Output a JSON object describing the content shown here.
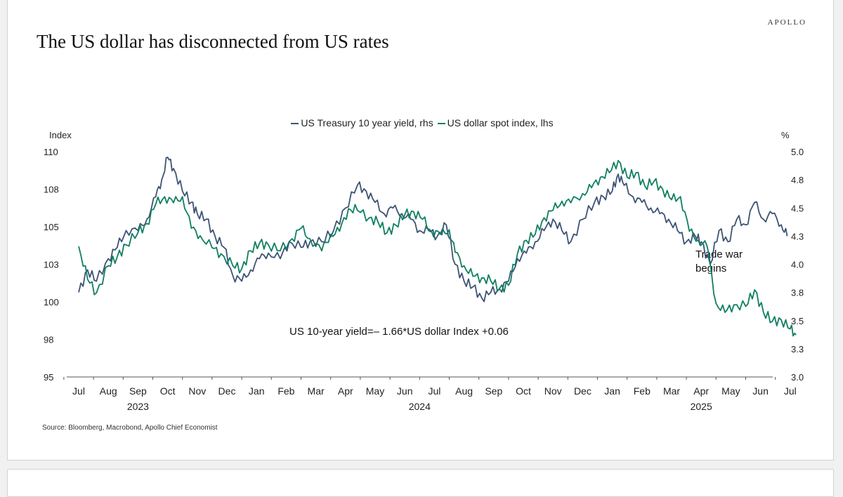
{
  "brand": "APOLLO",
  "title": "The US dollar has disconnected from US rates",
  "source": "Source: Bloomberg, Macrobond, Apollo Chief Economist",
  "chart_data": {
    "type": "line",
    "legend": [
      {
        "name": "US Treasury 10 year yield, rhs",
        "color": "#3d5375"
      },
      {
        "name": "US dollar spot index, lhs",
        "color": "#0e7f60"
      }
    ],
    "left_axis": {
      "label": "Index",
      "min": 95,
      "max": 110,
      "ticks": [
        "95",
        "98",
        "100",
        "103",
        "105",
        "108",
        "110"
      ]
    },
    "right_axis": {
      "label": "%",
      "min": 3.0,
      "max": 5.0,
      "ticks": [
        "3.0",
        "3.3",
        "3.5",
        "3.8",
        "4.0",
        "4.3",
        "4.5",
        "4.8",
        "5.0"
      ]
    },
    "x_months": [
      "Jul",
      "Aug",
      "Sep",
      "Oct",
      "Nov",
      "Dec",
      "Jan",
      "Feb",
      "Mar",
      "Apr",
      "May",
      "Jun",
      "Jul",
      "Aug",
      "Sep",
      "Oct",
      "Nov",
      "Dec",
      "Jan",
      "Feb",
      "Mar",
      "Apr",
      "May",
      "Jun",
      "Jul"
    ],
    "x_years": [
      {
        "label": "2023",
        "month_index": 2
      },
      {
        "label": "2024",
        "month_index": 11.5
      },
      {
        "label": "2025",
        "month_index": 21
      }
    ],
    "annotations": {
      "equation": "US 10-year yield=– 1.66*US dollar Index +0.06",
      "event_line1": "Trade war",
      "event_line2": "begins"
    },
    "series": [
      {
        "name": "US Treasury 10 year yield, rhs",
        "axis": "right",
        "color": "#3d5375",
        "points": [
          [
            0,
            3.75
          ],
          [
            0.3,
            3.95
          ],
          [
            0.6,
            3.85
          ],
          [
            1,
            4.05
          ],
          [
            1.3,
            4.15
          ],
          [
            1.6,
            4.3
          ],
          [
            2,
            4.3
          ],
          [
            2.3,
            4.4
          ],
          [
            2.6,
            4.6
          ],
          [
            2.8,
            4.75
          ],
          [
            3.0,
            4.95
          ],
          [
            3.2,
            4.85
          ],
          [
            3.5,
            4.65
          ],
          [
            3.8,
            4.55
          ],
          [
            4.0,
            4.45
          ],
          [
            4.3,
            4.4
          ],
          [
            4.6,
            4.25
          ],
          [
            4.9,
            4.15
          ],
          [
            5.2,
            3.9
          ],
          [
            5.5,
            3.85
          ],
          [
            5.8,
            3.95
          ],
          [
            6.1,
            4.05
          ],
          [
            6.4,
            4.1
          ],
          [
            6.8,
            4.05
          ],
          [
            7.1,
            4.2
          ],
          [
            7.5,
            4.15
          ],
          [
            7.8,
            4.2
          ],
          [
            8.2,
            4.2
          ],
          [
            8.6,
            4.3
          ],
          [
            9.0,
            4.5
          ],
          [
            9.4,
            4.7
          ],
          [
            9.7,
            4.65
          ],
          [
            10.0,
            4.55
          ],
          [
            10.3,
            4.45
          ],
          [
            10.6,
            4.5
          ],
          [
            10.9,
            4.45
          ],
          [
            11.2,
            4.4
          ],
          [
            11.5,
            4.3
          ],
          [
            11.8,
            4.3
          ],
          [
            12.1,
            4.25
          ],
          [
            12.4,
            4.35
          ],
          [
            12.7,
            4.0
          ],
          [
            13.0,
            3.85
          ],
          [
            13.3,
            3.8
          ],
          [
            13.6,
            3.7
          ],
          [
            13.9,
            3.75
          ],
          [
            14.2,
            3.78
          ],
          [
            14.5,
            3.85
          ],
          [
            14.8,
            4.05
          ],
          [
            15.1,
            4.1
          ],
          [
            15.4,
            4.2
          ],
          [
            15.7,
            4.3
          ],
          [
            16.0,
            4.4
          ],
          [
            16.3,
            4.3
          ],
          [
            16.6,
            4.2
          ],
          [
            17.0,
            4.4
          ],
          [
            17.4,
            4.55
          ],
          [
            17.7,
            4.6
          ],
          [
            18.0,
            4.65
          ],
          [
            18.2,
            4.8
          ],
          [
            18.4,
            4.7
          ],
          [
            18.7,
            4.6
          ],
          [
            19.0,
            4.55
          ],
          [
            19.3,
            4.5
          ],
          [
            19.6,
            4.45
          ],
          [
            19.9,
            4.4
          ],
          [
            20.2,
            4.3
          ],
          [
            20.5,
            4.2
          ],
          [
            20.8,
            4.25
          ],
          [
            21.0,
            4.2
          ],
          [
            21.3,
            4.0
          ],
          [
            21.6,
            4.3
          ],
          [
            21.9,
            4.2
          ],
          [
            22.2,
            4.4
          ],
          [
            22.5,
            4.35
          ],
          [
            22.8,
            4.55
          ],
          [
            23.1,
            4.4
          ],
          [
            23.4,
            4.45
          ],
          [
            23.7,
            4.35
          ],
          [
            23.9,
            4.25
          ]
        ]
      },
      {
        "name": "US dollar spot index, lhs",
        "axis": "left",
        "color": "#0e7f60",
        "points": [
          [
            0,
            103.7
          ],
          [
            0.3,
            101.5
          ],
          [
            0.6,
            100.6
          ],
          [
            1,
            102.4
          ],
          [
            1.3,
            103
          ],
          [
            1.6,
            103.8
          ],
          [
            2,
            104.6
          ],
          [
            2.3,
            105.2
          ],
          [
            2.6,
            106.5
          ],
          [
            2.9,
            107
          ],
          [
            3.2,
            106.6
          ],
          [
            3.5,
            107
          ],
          [
            3.8,
            104.9
          ],
          [
            4.1,
            104.4
          ],
          [
            4.5,
            103.6
          ],
          [
            4.8,
            103.2
          ],
          [
            5.2,
            102.4
          ],
          [
            5.5,
            102.2
          ],
          [
            5.8,
            103.4
          ],
          [
            6.1,
            103.9
          ],
          [
            6.4,
            103.8
          ],
          [
            6.8,
            103.4
          ],
          [
            7.2,
            104.2
          ],
          [
            7.5,
            104.9
          ],
          [
            7.8,
            104.2
          ],
          [
            8.2,
            103.4
          ],
          [
            8.5,
            104.5
          ],
          [
            8.8,
            104.7
          ],
          [
            9.1,
            106.2
          ],
          [
            9.4,
            106.1
          ],
          [
            9.8,
            105.6
          ],
          [
            10.1,
            105.3
          ],
          [
            10.4,
            104.6
          ],
          [
            10.7,
            105.1
          ],
          [
            11.0,
            105.8
          ],
          [
            11.3,
            106
          ],
          [
            11.6,
            105.5
          ],
          [
            11.9,
            104.7
          ],
          [
            12.2,
            104.5
          ],
          [
            12.5,
            104.8
          ],
          [
            12.7,
            103.3
          ],
          [
            13.0,
            102.4
          ],
          [
            13.3,
            101.7
          ],
          [
            13.6,
            101.6
          ],
          [
            13.9,
            101.4
          ],
          [
            14.2,
            100.9
          ],
          [
            14.5,
            101.1
          ],
          [
            14.8,
            103.2
          ],
          [
            15.1,
            104.1
          ],
          [
            15.4,
            104.5
          ],
          [
            15.7,
            105.6
          ],
          [
            16.0,
            106.1
          ],
          [
            16.3,
            106.7
          ],
          [
            16.6,
            106.6
          ],
          [
            17.0,
            107.2
          ],
          [
            17.3,
            107.6
          ],
          [
            17.6,
            108.3
          ],
          [
            17.9,
            108.6
          ],
          [
            18.2,
            109.4
          ],
          [
            18.5,
            108.3
          ],
          [
            18.8,
            108.6
          ],
          [
            19.1,
            107.7
          ],
          [
            19.4,
            108
          ],
          [
            19.7,
            107.5
          ],
          [
            20.0,
            106.8
          ],
          [
            20.3,
            107
          ],
          [
            20.6,
            104.7
          ],
          [
            20.9,
            104.1
          ],
          [
            21.2,
            103.7
          ],
          [
            21.5,
            99.9
          ],
          [
            21.8,
            99.3
          ],
          [
            22.1,
            99.8
          ],
          [
            22.5,
            99.7
          ],
          [
            22.8,
            100.8
          ],
          [
            23.1,
            99.3
          ],
          [
            23.4,
            98.7
          ],
          [
            23.7,
            98.8
          ],
          [
            24.0,
            98.2
          ],
          [
            24.2,
            97.8
          ]
        ]
      }
    ]
  }
}
